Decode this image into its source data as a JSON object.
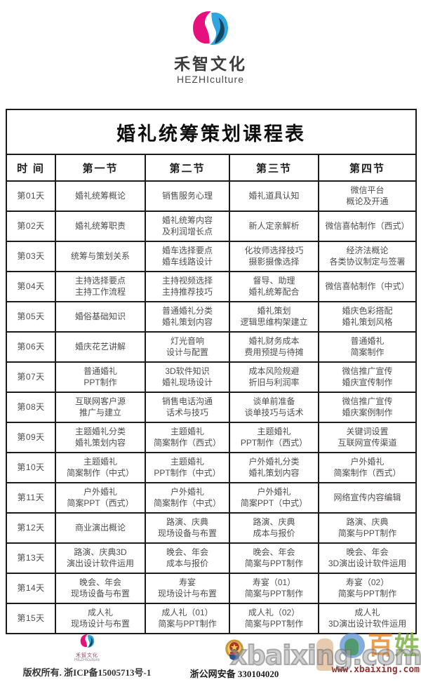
{
  "brand": {
    "name": "禾智文化",
    "sub": "HEZHIculture"
  },
  "table": {
    "title": "婚礼统筹策划课程表",
    "headers": [
      "时  间",
      "第一节",
      "第二节",
      "第三节",
      "第四节"
    ],
    "rows": [
      {
        "day": "第01天",
        "cells": [
          [
            "婚礼统筹概论"
          ],
          [
            "销售服务心理"
          ],
          [
            "婚礼道具认知"
          ],
          [
            "微信平台",
            "概论及开通"
          ]
        ]
      },
      {
        "day": "第02天",
        "cells": [
          [
            "婚礼统筹职责"
          ],
          [
            "婚礼统筹内容",
            "及利润增长点"
          ],
          [
            "新人定亲解析"
          ],
          [
            "微信喜帖制作（西式）"
          ]
        ]
      },
      {
        "day": "第03天",
        "cells": [
          [
            "统筹与策划关系"
          ],
          [
            "婚车选择要点",
            "婚车线路设计"
          ],
          [
            "化妆师选择技巧",
            "摄影摄像选择"
          ],
          [
            "经济法概论",
            "各类协议制定与签署"
          ]
        ]
      },
      {
        "day": "第04天",
        "cells": [
          [
            "主持选择要点",
            "主持工作流程"
          ],
          [
            "主持视频选择",
            "主持推荐技巧"
          ],
          [
            "督导、助理",
            "婚礼统筹配合"
          ],
          [
            "微信喜帖制作（中式）"
          ]
        ]
      },
      {
        "day": "第05天",
        "cells": [
          [
            "婚俗基础知识"
          ],
          [
            "普通婚礼分类",
            "婚礼策划内容"
          ],
          [
            "婚礼策划",
            "逻辑思维构架建立"
          ],
          [
            "婚庆色彩搭配",
            "婚礼策划风格"
          ]
        ]
      },
      {
        "day": "第06天",
        "cells": [
          [
            "婚庆花艺讲解"
          ],
          [
            "灯光音响",
            "设计与配置"
          ],
          [
            "婚礼财务成本",
            "费用预提与待摊"
          ],
          [
            "普通婚礼",
            "简案制作"
          ]
        ]
      },
      {
        "day": "第07天",
        "cells": [
          [
            "普通婚礼",
            "PPT制作"
          ],
          [
            "3D软件知识",
            "婚礼现场设计"
          ],
          [
            "成本风险规避",
            "折旧与利润率"
          ],
          [
            "微信推广宣传",
            "婚庆宣传制作"
          ]
        ]
      },
      {
        "day": "第08天",
        "cells": [
          [
            "互联网客户源",
            "推广与建立"
          ],
          [
            "销售电话沟通",
            "话术与技巧"
          ],
          [
            "谈单前准备",
            "谈单技巧与话术"
          ],
          [
            "微信推广宣传",
            "婚庆案例制作"
          ]
        ]
      },
      {
        "day": "第09天",
        "cells": [
          [
            "主题婚礼分类",
            "婚礼策划内容"
          ],
          [
            "主题婚礼",
            "简案制作（西式）"
          ],
          [
            "主题婚礼",
            "PPT制作（西式）"
          ],
          [
            "关键词设置",
            "互联网宣传渠道"
          ]
        ]
      },
      {
        "day": "第10天",
        "cells": [
          [
            "主题婚礼",
            "简案制作（中式）"
          ],
          [
            "主题婚礼",
            "PPT制作（中式）"
          ],
          [
            "户外婚礼分类",
            "婚礼策划内容"
          ],
          [
            "户外婚礼",
            "简案制作（西式）"
          ]
        ]
      },
      {
        "day": "第11天",
        "cells": [
          [
            "户外婚礼",
            "简案PPT（西式）"
          ],
          [
            "户外婚礼",
            "简案制作（中式）"
          ],
          [
            "户外婚礼",
            "简案PPT（中式）"
          ],
          [
            "网络宣传内容编辑"
          ]
        ]
      },
      {
        "day": "第12天",
        "cells": [
          [
            "商业演出概论"
          ],
          [
            "路演、庆典",
            "现场设备与布置"
          ],
          [
            "路演、庆典",
            "成本与报价"
          ],
          [
            "路演、庆典",
            "简案与PPT制作"
          ]
        ]
      },
      {
        "day": "第13天",
        "cells": [
          [
            "路演、庆典3D",
            "演出设计软件运用"
          ],
          [
            "晚会、年会",
            "成本与报价"
          ],
          [
            "晚会、年会",
            "简案与PPT制作"
          ],
          [
            "晚会、年会",
            "3D演出设计软件运用"
          ]
        ]
      },
      {
        "day": "第14天",
        "cells": [
          [
            "晚会、年会",
            "现场设备与布置"
          ],
          [
            "寿宴",
            "现场设计与布置"
          ],
          [
            "寿宴（01）",
            "简案与PPT制作"
          ],
          [
            "寿宴（02）",
            "简案与PPT制作"
          ]
        ]
      },
      {
        "day": "第15天",
        "cells": [
          [
            "成人礼",
            "现场设计与布置"
          ],
          [
            "成人礼（01）",
            "简案与PPT制作"
          ],
          [
            "成人礼（02）",
            "简案与PPT制作"
          ],
          [
            "成人礼",
            "3D演出设计软件运用"
          ]
        ]
      }
    ]
  },
  "footer": {
    "brand_name": "禾智文化",
    "brand_sub": "HEZHIculture",
    "copyright": "版权所有. 浙ICP备15005713号-1",
    "police_text": "浙公网安备 330104020"
  },
  "watermark": {
    "big_text": "xbaixing.com",
    "url": "www.xbaixing.com",
    "char_left": "百",
    "char_right": "姓"
  },
  "colors": {
    "brand_pink": "#e5127d",
    "brand_purple": "#701c55",
    "brand_blue": "#2fa7de",
    "brand_navy": "#15465f",
    "table_border": "#1c1c1c",
    "cell_text": "#4f4c4c",
    "watermark_red": "#821c1c"
  }
}
